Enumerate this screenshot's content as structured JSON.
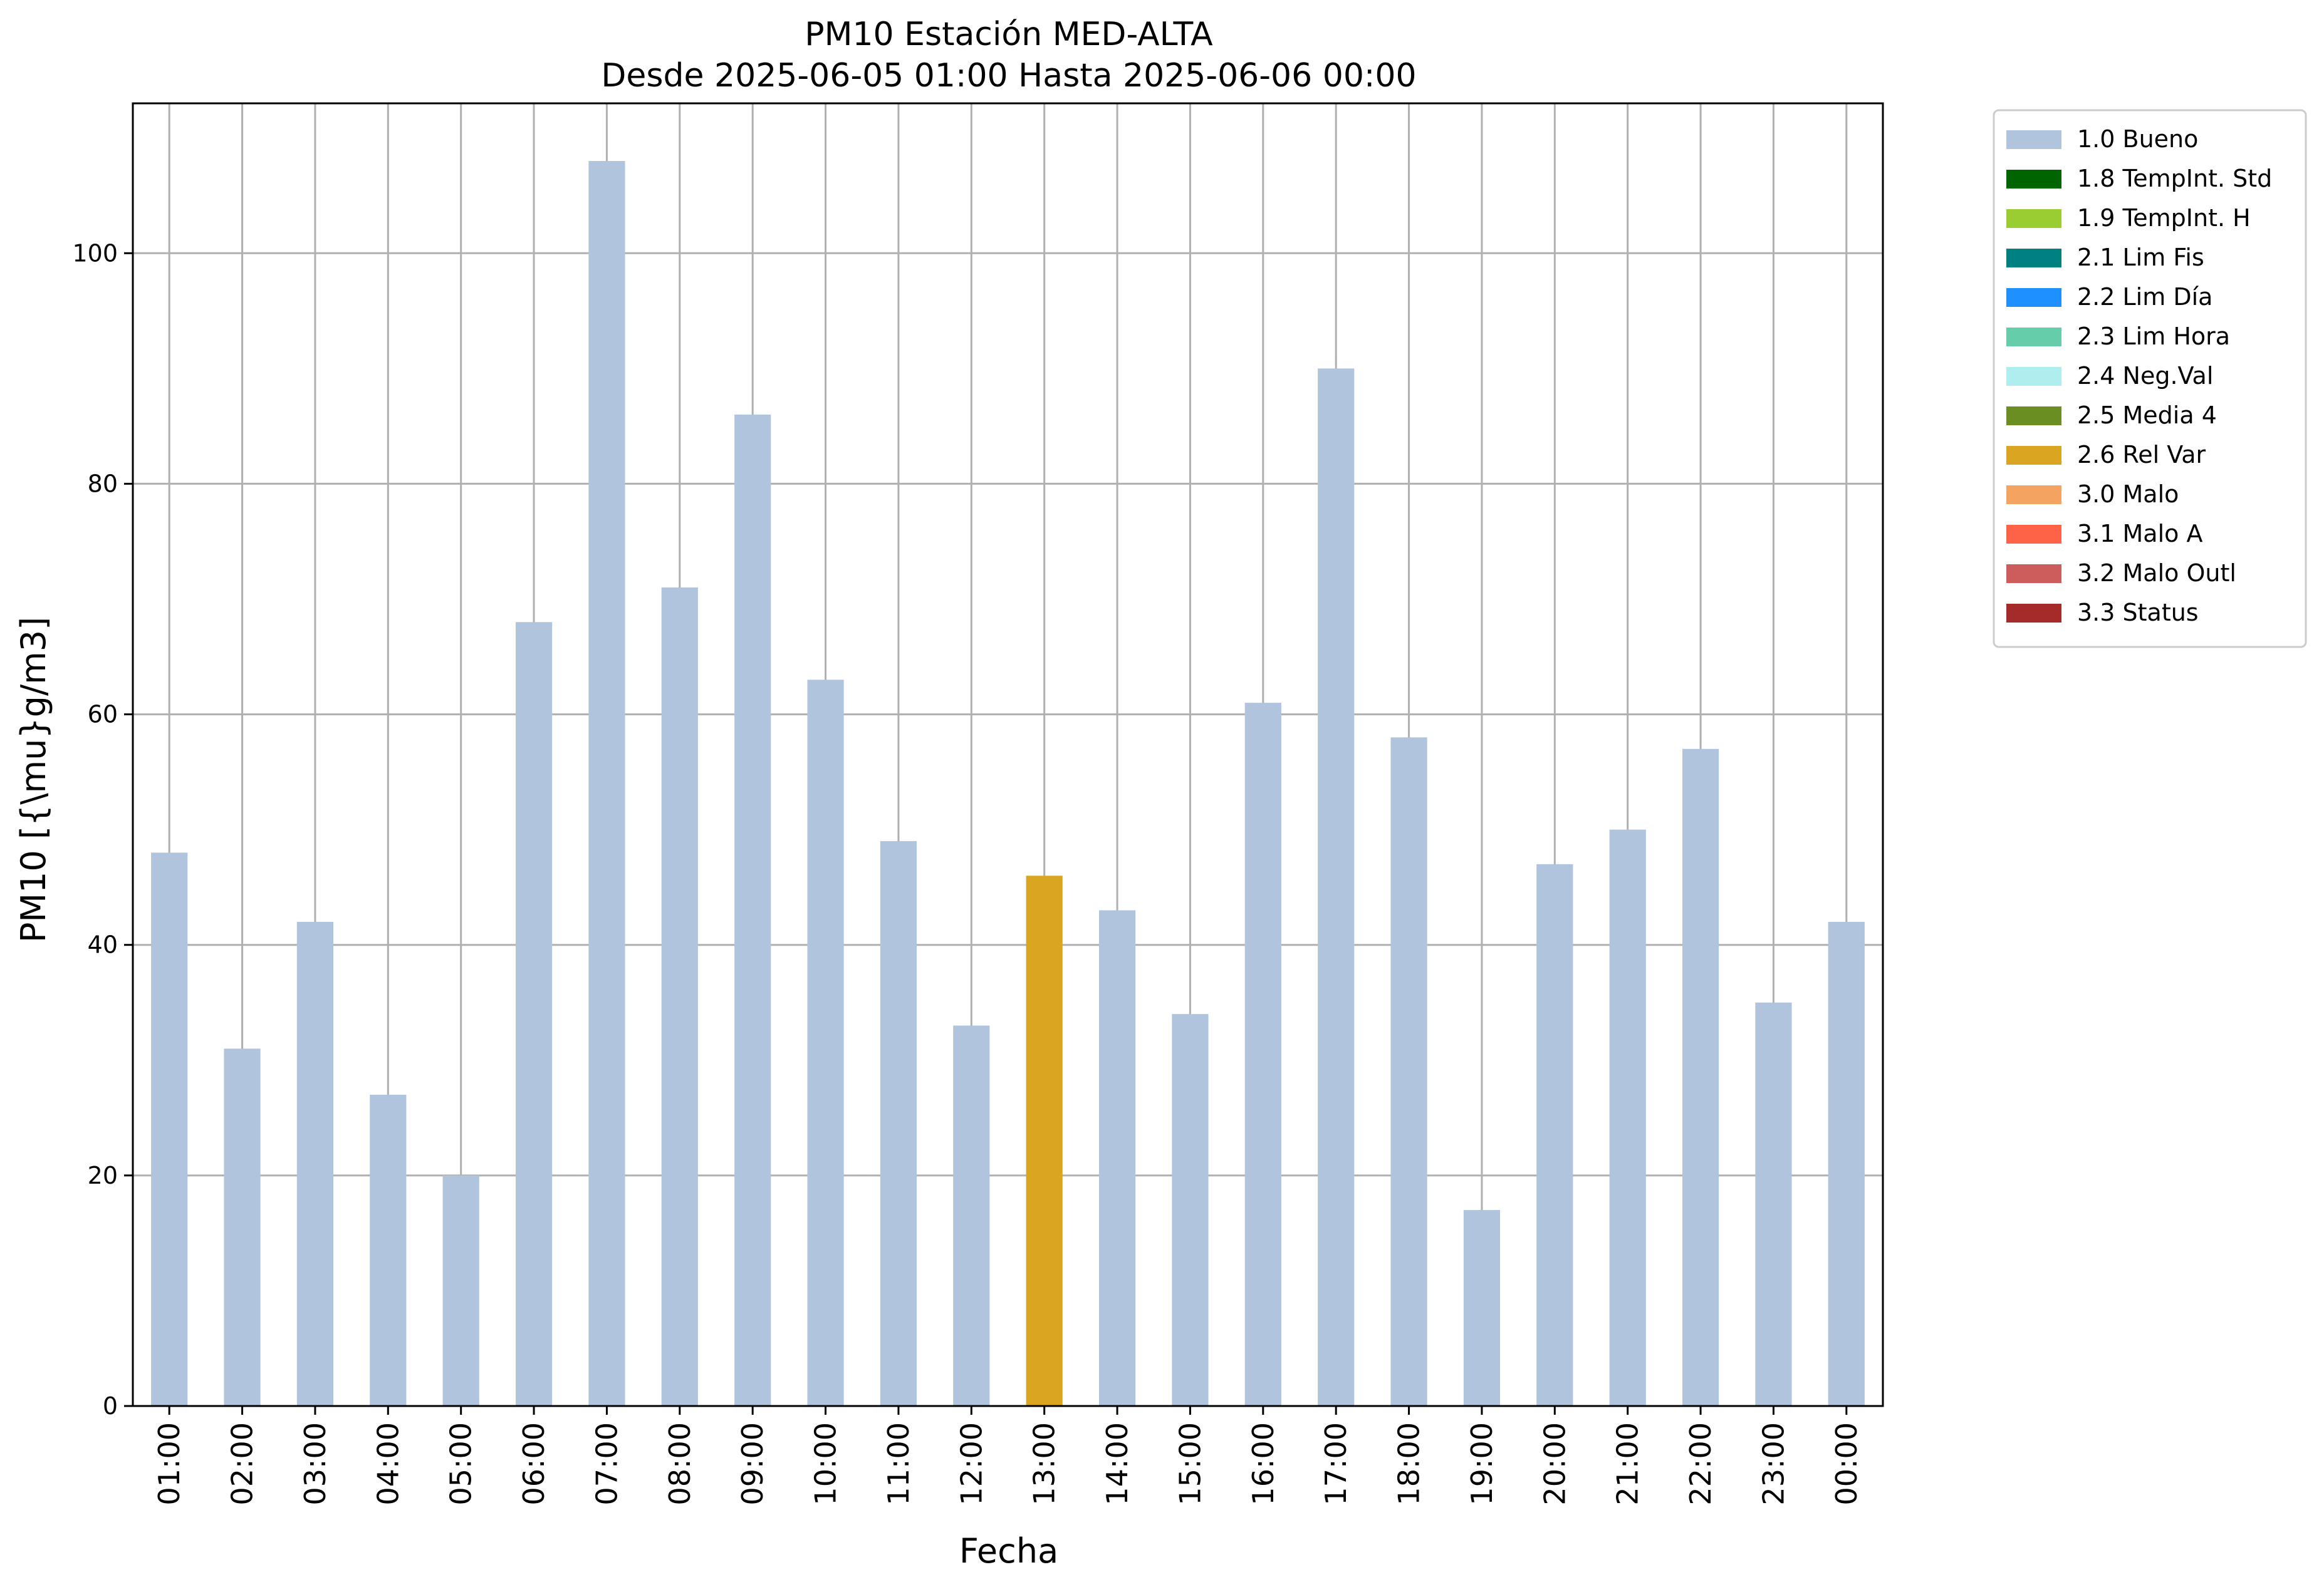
{
  "chart_data": {
    "type": "bar",
    "title": "PM10 Estación MED-ALTA",
    "subtitle": "Desde 2025-06-05 01:00 Hasta 2025-06-06 00:00",
    "xlabel": "Fecha",
    "ylabel": "PM10 [{\\mu}g/m3]",
    "ylim": [
      0,
      113
    ],
    "yticks": [
      0,
      20,
      40,
      60,
      80,
      100
    ],
    "grid": true,
    "legend_position": "outside-top-right",
    "categories": [
      "01:00",
      "02:00",
      "03:00",
      "04:00",
      "05:00",
      "06:00",
      "07:00",
      "08:00",
      "09:00",
      "10:00",
      "11:00",
      "12:00",
      "13:00",
      "14:00",
      "15:00",
      "16:00",
      "17:00",
      "18:00",
      "19:00",
      "20:00",
      "21:00",
      "22:00",
      "23:00",
      "00:00"
    ],
    "values": [
      48,
      31,
      42,
      27,
      20,
      68,
      108,
      71,
      86,
      63,
      49,
      33,
      46,
      43,
      34,
      61,
      90,
      58,
      17,
      47,
      50,
      57,
      35,
      42
    ],
    "flags": [
      "1.0 Bueno",
      "1.0 Bueno",
      "1.0 Bueno",
      "1.0 Bueno",
      "1.0 Bueno",
      "1.0 Bueno",
      "1.0 Bueno",
      "1.0 Bueno",
      "1.0 Bueno",
      "1.0 Bueno",
      "1.0 Bueno",
      "1.0 Bueno",
      "2.6 Rel Var",
      "1.0 Bueno",
      "1.0 Bueno",
      "1.0 Bueno",
      "1.0 Bueno",
      "1.0 Bueno",
      "1.0 Bueno",
      "1.0 Bueno",
      "1.0 Bueno",
      "1.0 Bueno",
      "1.0 Bueno",
      "1.0 Bueno"
    ],
    "legend": [
      {
        "label": "1.0 Bueno",
        "color": "#b0c4de"
      },
      {
        "label": "1.8 TempInt. Std",
        "color": "#006400"
      },
      {
        "label": "1.9 TempInt. H",
        "color": "#9acd32"
      },
      {
        "label": "2.1 Lim Fis",
        "color": "#008080"
      },
      {
        "label": "2.2 Lim Día",
        "color": "#1e90ff"
      },
      {
        "label": "2.3 Lim Hora",
        "color": "#66cdaa"
      },
      {
        "label": "2.4 Neg.Val",
        "color": "#afeeee"
      },
      {
        "label": "2.5 Media 4",
        "color": "#6b8e23"
      },
      {
        "label": "2.6 Rel Var",
        "color": "#daa520"
      },
      {
        "label": "3.0 Malo",
        "color": "#f4a460"
      },
      {
        "label": "3.1 Malo A",
        "color": "#ff6347"
      },
      {
        "label": "3.2 Malo Outl",
        "color": "#cd5c5c"
      },
      {
        "label": "3.3 Status",
        "color": "#a52a2a"
      }
    ]
  }
}
